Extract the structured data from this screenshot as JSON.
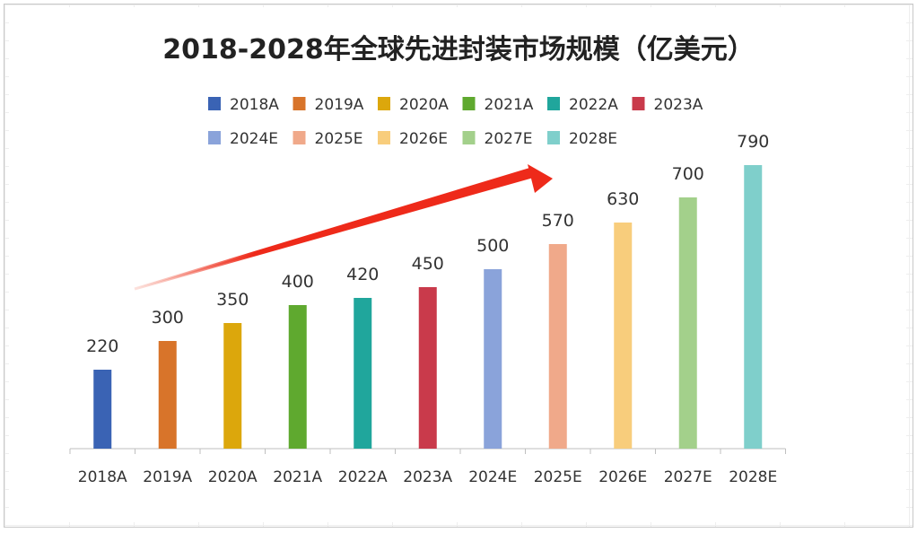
{
  "chart_data": {
    "type": "bar",
    "title": "2018-2028年全球先进封装市场规模（亿美元）",
    "xlabel": "",
    "ylabel": "",
    "categories": [
      "2018A",
      "2019A",
      "2020A",
      "2021A",
      "2022A",
      "2023A",
      "2024E",
      "2025E",
      "2026E",
      "2027E",
      "2028E"
    ],
    "values": [
      220,
      300,
      350,
      400,
      420,
      450,
      500,
      570,
      630,
      700,
      790
    ],
    "colors": [
      "#3a63b4",
      "#d8742a",
      "#dca70c",
      "#5fa92f",
      "#20a69c",
      "#c93a4b",
      "#8aa3da",
      "#f0a98a",
      "#f8cd7c",
      "#a3d08b",
      "#7fcfcb"
    ],
    "legend": {
      "position": "top",
      "entries": [
        "2018A",
        "2019A",
        "2020A",
        "2021A",
        "2022A",
        "2023A",
        "2024E",
        "2025E",
        "2026E",
        "2027E",
        "2028E"
      ]
    },
    "grid": false,
    "ylim": [
      0,
      1000
    ],
    "data_labels": true,
    "annotation": {
      "type": "arrow",
      "color": "#ee2a1a"
    }
  }
}
